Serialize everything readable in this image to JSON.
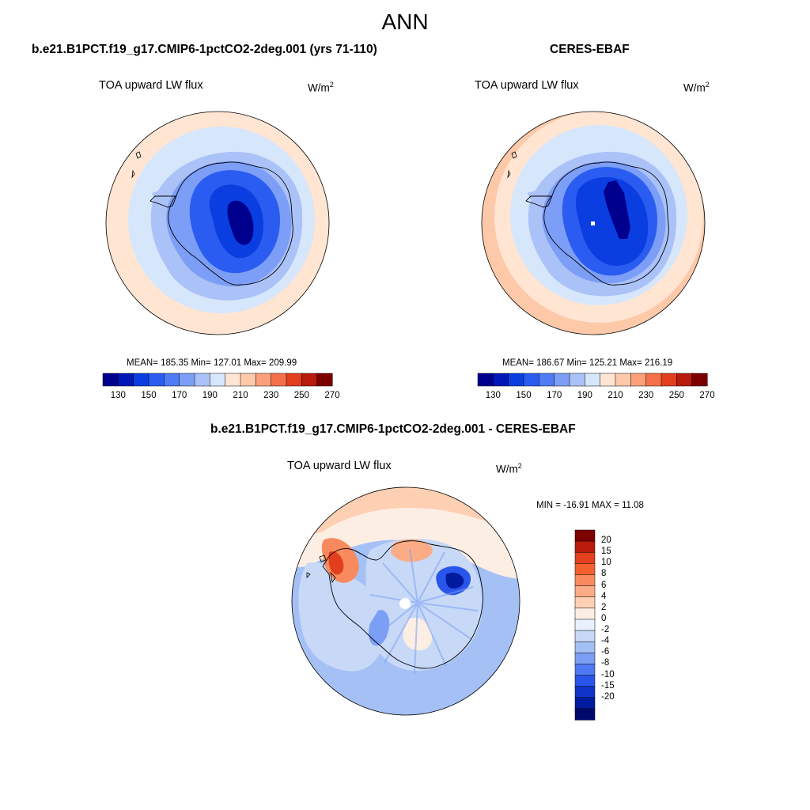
{
  "page": {
    "title": "ANN"
  },
  "panels": [
    {
      "title": "b.e21.B1PCT.f19_g17.CMIP6-1pctCO2-2deg.001 (yrs 71-110)",
      "variable": "TOA upward LW flux",
      "units_base": "W/m",
      "units_exp": "2",
      "stats": "MEAN= 185.35  Min= 127.01  Max= 209.99"
    },
    {
      "title": "CERES-EBAF",
      "variable": "TOA upward LW flux",
      "units_base": "W/m",
      "units_exp": "2",
      "stats": "MEAN= 186.67  Min= 125.21  Max= 216.19"
    },
    {
      "title": "b.e21.B1PCT.f19_g17.CMIP6-1pctCO2-2deg.001 - CERES-EBAF",
      "variable": "TOA upward LW flux",
      "units_base": "W/m",
      "units_exp": "2",
      "stats": "MIN = -16.91 MAX =  11.08"
    }
  ],
  "chart_data": [
    {
      "type": "heatmap",
      "projection": "south-polar-stereographic",
      "title": "b.e21.B1PCT.f19_g17.CMIP6-1pctCO2-2deg.001 (yrs 71-110)",
      "variable": "TOA upward LW flux",
      "units": "W/m2",
      "mean": 185.35,
      "min": 127.01,
      "max": 209.99,
      "colorbar": {
        "orientation": "horizontal",
        "levels": [
          130,
          140,
          150,
          160,
          170,
          180,
          190,
          200,
          210,
          220,
          230,
          240,
          250,
          260,
          270
        ],
        "labels": [
          "130",
          "150",
          "170",
          "190",
          "210",
          "230",
          "250",
          "270"
        ],
        "colors": [
          "#00008f",
          "#0018b8",
          "#0a3ee0",
          "#2a5cf2",
          "#4f7cf5",
          "#7d9ef6",
          "#aac2f7",
          "#d6e6fb",
          "#ffe5d2",
          "#fdc9a9",
          "#fba07a",
          "#f5704a",
          "#e23f1f",
          "#b81a0b",
          "#7d0000"
        ]
      },
      "regions": [
        {
          "name": "antarctic-interior-plateau",
          "value": 130
        },
        {
          "name": "antarctic-ice-sheet",
          "value": 145
        },
        {
          "name": "antarctic-coast",
          "value": 165
        },
        {
          "name": "southern-ocean-pack-ice",
          "value": 180
        },
        {
          "name": "southern-ocean",
          "value": 195
        },
        {
          "name": "mid-latitude-ocean",
          "value": 205
        }
      ]
    },
    {
      "type": "heatmap",
      "projection": "south-polar-stereographic",
      "title": "CERES-EBAF",
      "variable": "TOA upward LW flux",
      "units": "W/m2",
      "mean": 186.67,
      "min": 125.21,
      "max": 216.19,
      "colorbar": {
        "orientation": "horizontal",
        "levels": [
          130,
          140,
          150,
          160,
          170,
          180,
          190,
          200,
          210,
          220,
          230,
          240,
          250,
          260,
          270
        ],
        "labels": [
          "130",
          "150",
          "170",
          "190",
          "210",
          "230",
          "250",
          "270"
        ],
        "colors": [
          "#00008f",
          "#0018b8",
          "#0a3ee0",
          "#2a5cf2",
          "#4f7cf5",
          "#7d9ef6",
          "#aac2f7",
          "#d6e6fb",
          "#ffe5d2",
          "#fdc9a9",
          "#fba07a",
          "#f5704a",
          "#e23f1f",
          "#b81a0b",
          "#7d0000"
        ]
      },
      "regions": [
        {
          "name": "antarctic-interior-plateau",
          "value": 130
        },
        {
          "name": "antarctic-ice-sheet",
          "value": 145
        },
        {
          "name": "antarctic-coast",
          "value": 165
        },
        {
          "name": "southern-ocean-pack-ice",
          "value": 180
        },
        {
          "name": "southern-ocean",
          "value": 195
        },
        {
          "name": "mid-latitude-ocean",
          "value": 205
        },
        {
          "name": "outer-ring-warm",
          "value": 215
        }
      ]
    },
    {
      "type": "heatmap",
      "projection": "south-polar-stereographic",
      "title": "b.e21.B1PCT.f19_g17.CMIP6-1pctCO2-2deg.001 - CERES-EBAF",
      "variable": "TOA upward LW flux",
      "units": "W/m2",
      "min": -16.91,
      "max": 11.08,
      "colorbar": {
        "orientation": "vertical",
        "labels": [
          "20",
          "15",
          "10",
          "8",
          "6",
          "4",
          "2",
          "0",
          "-2",
          "-4",
          "-6",
          "-8",
          "-10",
          "-15",
          "-20"
        ],
        "colors": [
          "#7d0000",
          "#b81a0b",
          "#e23f1f",
          "#f5602f",
          "#f98a5e",
          "#fbac86",
          "#fdd0b4",
          "#fdeee3",
          "#e8f0fb",
          "#c7d9f7",
          "#a4c0f5",
          "#7b9ff4",
          "#4f79f2",
          "#2a55ea",
          "#0f33c9",
          "#001b9e",
          "#000a6e"
        ]
      },
      "regions": [
        {
          "name": "southern-ocean-band",
          "value": -3
        },
        {
          "name": "northern-ring",
          "value": 1
        },
        {
          "name": "antarctic-peninsula-hotspot",
          "value": 11
        },
        {
          "name": "east-antarctica-negative",
          "value": -14
        },
        {
          "name": "pole-hole",
          "value": 0
        }
      ]
    }
  ]
}
